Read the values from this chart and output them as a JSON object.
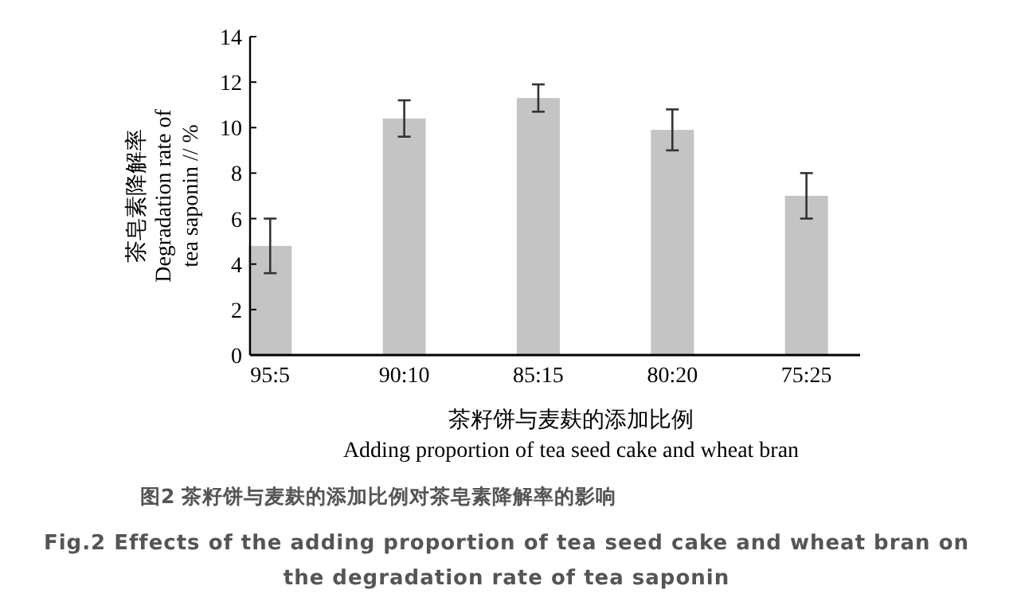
{
  "chart_data": {
    "type": "bar",
    "title": "图2 茶籽饼与麦麸的添加比例对茶皂素降解率的影响",
    "subtitle": "Fig.2 Effects of the adding proportion of tea seed cake and wheat bran on the degradation rate of tea saponin",
    "xlabel": "茶籽饼与麦麸的添加比例\nAdding proportion of tea seed cake and wheat bran",
    "ylabel": "茶皂素降解率\nDegradation rate of\ntea saponin // %",
    "categories": [
      "95:5",
      "90:10",
      "85:15",
      "80:20",
      "75:25"
    ],
    "values": [
      4.8,
      10.4,
      11.3,
      9.9,
      7.0
    ],
    "errors": [
      1.2,
      0.8,
      0.6,
      0.9,
      1.0
    ],
    "color": "#c4c4c4",
    "ylim": [
      0,
      14
    ],
    "yticks": [
      0,
      2,
      4,
      6,
      8,
      10,
      12,
      14
    ]
  }
}
